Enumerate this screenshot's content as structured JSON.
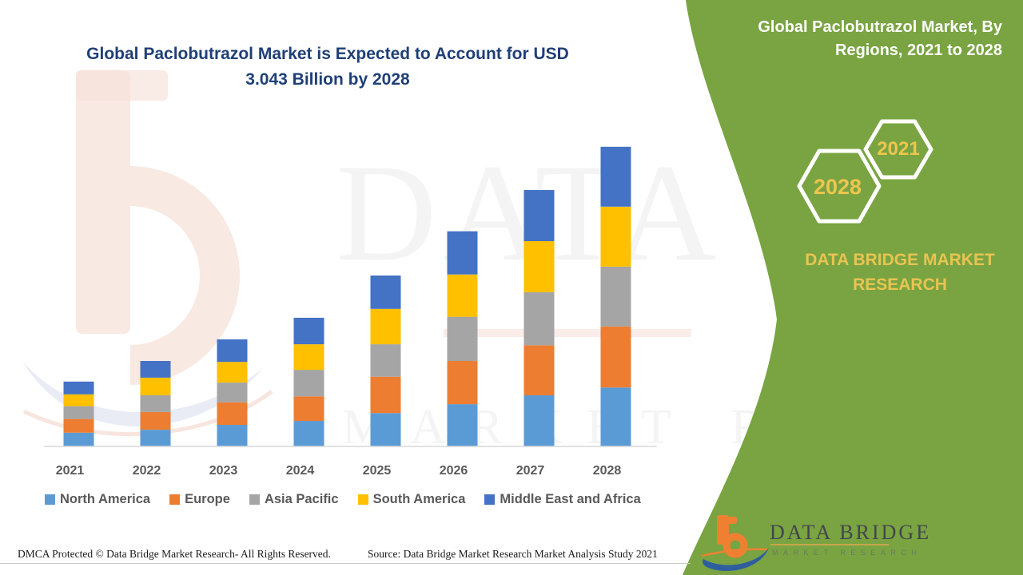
{
  "main": {
    "title_line1": "Global Paclobutrazol Market is Expected to Account for USD",
    "title_line2": "3.043 Billion by 2028",
    "title_color": "#1F3F77"
  },
  "side_panel": {
    "header_line1": "Global Paclobutrazol Market, By",
    "header_line2": "Regions, 2021 to 2028",
    "hexagons": [
      {
        "label": "2021"
      },
      {
        "label": "2028"
      }
    ],
    "brand_text": "DATA BRIDGE MARKET RESEARCH",
    "background_color": "#79A441",
    "accent_text_color": "#E9C452"
  },
  "chart_data": {
    "type": "bar",
    "stacked": true,
    "title": "Global Paclobutrazol Market is Expected to Account for USD 3.043 Billion by 2028",
    "unit": "USD Billion",
    "categories": [
      "2021",
      "2022",
      "2023",
      "2024",
      "2025",
      "2026",
      "2027",
      "2028"
    ],
    "series": [
      {
        "name": "North America",
        "color": "#5B9BD5",
        "values": [
          0.14,
          0.17,
          0.22,
          0.26,
          0.34,
          0.43,
          0.52,
          0.6
        ]
      },
      {
        "name": "Europe",
        "color": "#ED7D31",
        "values": [
          0.14,
          0.18,
          0.23,
          0.25,
          0.37,
          0.44,
          0.51,
          0.62
        ]
      },
      {
        "name": "Asia Pacific",
        "color": "#A5A5A5",
        "values": [
          0.13,
          0.17,
          0.2,
          0.27,
          0.33,
          0.45,
          0.54,
          0.61
        ]
      },
      {
        "name": "South America",
        "color": "#FFC000",
        "values": [
          0.12,
          0.18,
          0.21,
          0.26,
          0.36,
          0.43,
          0.52,
          0.61
        ]
      },
      {
        "name": "Middle East and Africa",
        "color": "#4472C4",
        "values": [
          0.13,
          0.17,
          0.23,
          0.27,
          0.34,
          0.44,
          0.52,
          0.61
        ]
      }
    ],
    "totals_estimated": [
      0.66,
      0.87,
      1.09,
      1.31,
      1.74,
      2.19,
      2.61,
      3.04
    ],
    "labeled_final_total": 3.043,
    "legend_position": "bottom",
    "gridlines": false,
    "y_axis_visible": false,
    "axis_label_color": "#595959",
    "axis_line_color": "#D9D9D9"
  },
  "footer": {
    "dmca": "DMCA Protected © Data Bridge Market Research- All Rights Reserved.",
    "source": "Source: Data Bridge Market Research Market Analysis Study 2021"
  },
  "logo": {
    "name": "DATA BRIDGE",
    "tagline": "MARKET RESEARCH"
  }
}
